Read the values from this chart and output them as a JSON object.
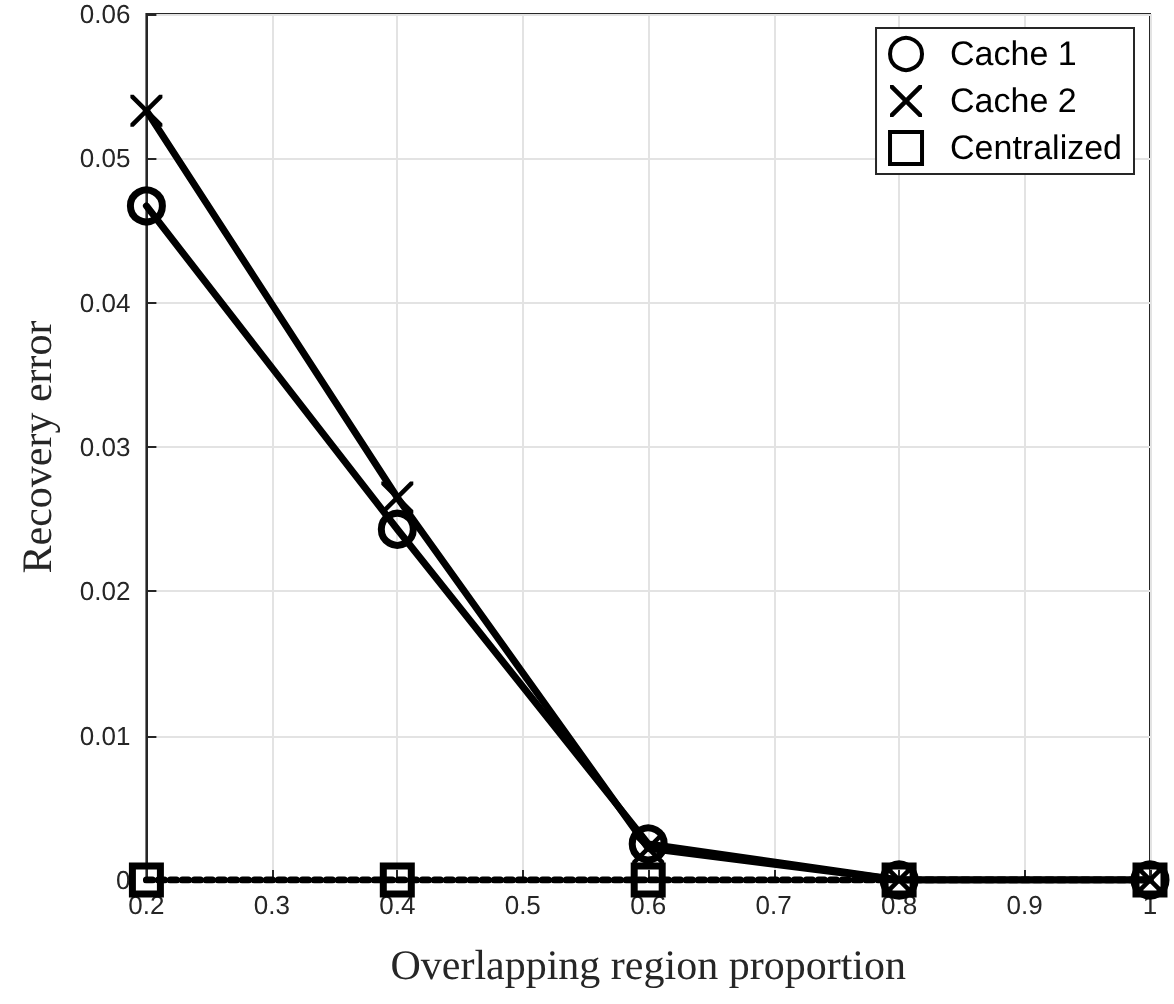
{
  "chart_data": {
    "type": "line",
    "xlabel": "Overlapping region proportion",
    "ylabel": "Recovery error",
    "x": [
      0.2,
      0.4,
      0.6,
      0.8,
      1
    ],
    "series": [
      {
        "name": "Cache 1",
        "color": "#000000",
        "marker": "circle",
        "line_style": "solid",
        "values": [
          0.0467,
          0.0243,
          0.0025,
          0,
          0
        ]
      },
      {
        "name": "Cache 2",
        "color": "#000000",
        "marker": "cross",
        "line_style": "solid",
        "values": [
          0.0533,
          0.0265,
          0.0022,
          0,
          0
        ]
      },
      {
        "name": "Centralized",
        "color": "#000000",
        "marker": "square",
        "line_style": "dotted",
        "values": [
          0,
          0,
          0,
          0,
          0
        ]
      }
    ],
    "xlim": [
      0.2,
      1
    ],
    "xticks": [
      0.2,
      0.3,
      0.4,
      0.5,
      0.6,
      0.7,
      0.8,
      0.9,
      1
    ],
    "ylim": [
      0,
      0.06
    ],
    "yticks": [
      0,
      0.01,
      0.02,
      0.03,
      0.04,
      0.05,
      0.06
    ],
    "grid": true,
    "legend": "top right"
  }
}
